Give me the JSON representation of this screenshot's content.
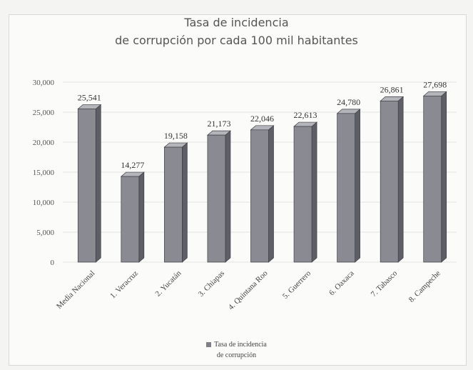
{
  "chart_data": {
    "type": "bar",
    "title": "Tasa de incidencia",
    "subtitle": "de corrupción por cada 100 mil habitantes",
    "categories": [
      "Media Nacional",
      "1. Veracruz",
      "2. Yucatán",
      "3. Chiapas",
      "4. Quintana Roo",
      "5. Guerrero",
      "6. Oaxaca",
      "7. Tabasco",
      "8. Campeche"
    ],
    "series": [
      {
        "name": "Tasa de incidencia de corrupción",
        "values": [
          25541,
          14277,
          19158,
          21173,
          22046,
          22613,
          24780,
          26861,
          27698
        ]
      }
    ],
    "data_labels": [
      "25,541",
      "14,277",
      "19,158",
      "21,173",
      "22,046",
      "22,613",
      "24,780",
      "26,861",
      "27,698"
    ],
    "y_ticks": [
      "0",
      "5,000",
      "10,000",
      "15,000",
      "20,000",
      "25,000",
      "30,000"
    ],
    "ylim": [
      0,
      30000
    ],
    "grid": true,
    "legend": "bottom",
    "colors": {
      "bar_front": "#8a8a93",
      "bar_side": "#5e5e66",
      "bar_top": "#b4b4bb"
    }
  },
  "legend": {
    "line1": "Tasa de incidencia",
    "line2": "de corrupción"
  }
}
